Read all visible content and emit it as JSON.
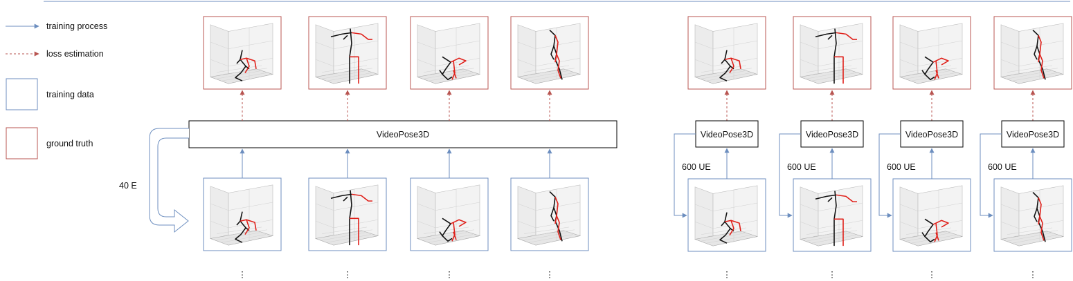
{
  "legend": {
    "items": [
      {
        "kind": "training-process",
        "label": "training process",
        "color": "#6c8ebf"
      },
      {
        "kind": "loss-estimation",
        "label": "loss estimation",
        "color": "#b85450"
      },
      {
        "kind": "training-data",
        "label": "training data",
        "color": "#6c8ebf"
      },
      {
        "kind": "ground-truth",
        "label": "ground truth",
        "color": "#b85450"
      }
    ]
  },
  "left_panel": {
    "model_label": "VideoPose3D",
    "loop_label": "40 E",
    "poses": [
      "crouch",
      "stand",
      "crouch-b",
      "bend"
    ]
  },
  "right_panel": {
    "columns": [
      {
        "model_label": "VideoPose3D",
        "loop_label": "600 UE",
        "pose": "crouch"
      },
      {
        "model_label": "VideoPose3D",
        "loop_label": "600 UE",
        "pose": "stand"
      },
      {
        "model_label": "VideoPose3D",
        "loop_label": "600 UE",
        "pose": "crouch-b"
      },
      {
        "model_label": "VideoPose3D",
        "loop_label": "600 UE",
        "pose": "bend"
      }
    ]
  },
  "continuation": "⋮",
  "colors": {
    "blue": "#6c8ebf",
    "red": "#b85450",
    "skeleton_red": "#e0201a",
    "skeleton_black": "#111111"
  }
}
